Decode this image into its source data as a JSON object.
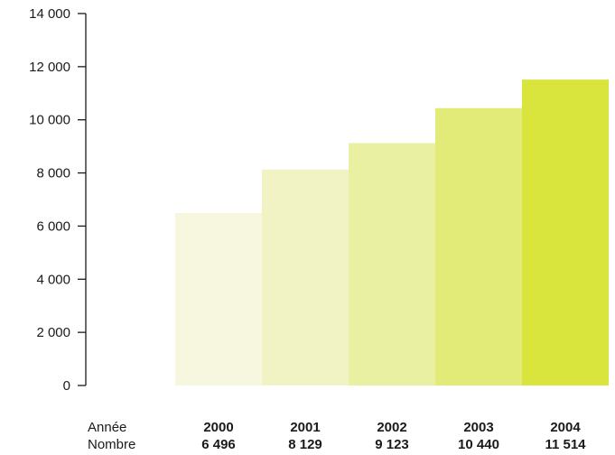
{
  "chart_data": {
    "type": "bar",
    "title": "",
    "xlabel": "",
    "ylabel": "",
    "ylim": [
      0,
      14000
    ],
    "y_ticks": [
      {
        "value": 0,
        "label": "0"
      },
      {
        "value": 2000,
        "label": "2 000"
      },
      {
        "value": 4000,
        "label": "4 000"
      },
      {
        "value": 6000,
        "label": "6 000"
      },
      {
        "value": 8000,
        "label": "8 000"
      },
      {
        "value": 10000,
        "label": "10 000"
      },
      {
        "value": 12000,
        "label": "12 000"
      },
      {
        "value": 14000,
        "label": "14 000"
      }
    ],
    "grid": false,
    "legend": "none",
    "categories": [
      "2000",
      "2001",
      "2002",
      "2003",
      "2004"
    ],
    "values": [
      6496,
      8129,
      9123,
      10440,
      11514
    ],
    "value_labels": [
      "6 496",
      "8 129",
      "9 123",
      "10 440",
      "11 514"
    ],
    "bar_colors": [
      "#f7f6df",
      "#f2f3c4",
      "#eaf0a2",
      "#e2ea78",
      "#d9e43c"
    ],
    "axis_color": "#1a1a1a",
    "table": {
      "row_labels": [
        "Année",
        "Nombre"
      ]
    }
  }
}
